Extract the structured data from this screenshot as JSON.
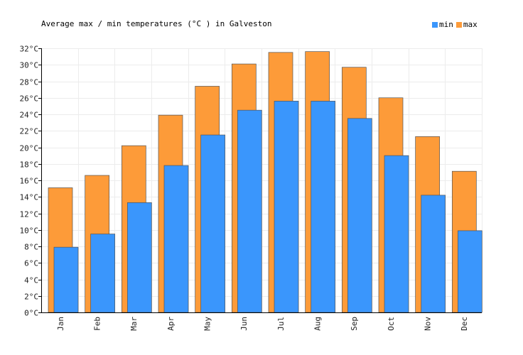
{
  "chart_data": {
    "type": "bar",
    "title": "Average max / min temperatures (°C ) in Galveston",
    "xlabel": "",
    "ylabel": "",
    "categories": [
      "Jan",
      "Feb",
      "Mar",
      "Apr",
      "May",
      "Jun",
      "Jul",
      "Aug",
      "Sep",
      "Oct",
      "Nov",
      "Dec"
    ],
    "series": [
      {
        "name": "min",
        "color": "#3a96fc",
        "values": [
          7.9,
          9.5,
          13.3,
          17.8,
          21.5,
          24.5,
          25.6,
          25.6,
          23.5,
          19.0,
          14.2,
          9.9
        ]
      },
      {
        "name": "max",
        "color": "#fd9b39",
        "values": [
          15.1,
          16.6,
          20.2,
          23.9,
          27.4,
          30.1,
          31.5,
          31.6,
          29.7,
          26.0,
          21.3,
          17.1
        ]
      }
    ],
    "ylim": [
      0,
      32
    ],
    "ytick_step": 2,
    "ytick_suffix": "°C",
    "grid": true,
    "legend_position": "top-right"
  }
}
